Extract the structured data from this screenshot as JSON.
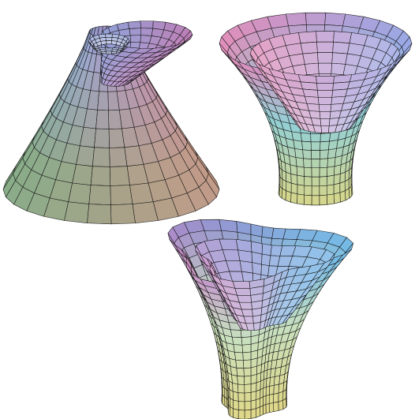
{
  "figure": {
    "background": "#ffffff",
    "mesh_line_color": "#141414",
    "surfaces": [
      {
        "id": "twisted-cone",
        "kind": "ruled-surface-pair",
        "shading": [
          "#d070a8",
          "#8fa0d8",
          "#8f8f8f",
          "#6fb06f",
          "#d89070"
        ]
      },
      {
        "id": "nested-bowls",
        "kind": "two-lobed-vase",
        "shading": [
          "#e58ab8",
          "#9aa6e6",
          "#7cc6e8",
          "#b8e0b8",
          "#d6d68a"
        ]
      },
      {
        "id": "clover-vase",
        "kind": "three-lobed-vase",
        "shading": [
          "#a080c8",
          "#e88fc0",
          "#6fb8e8",
          "#c8e0c0",
          "#e0d888"
        ]
      }
    ]
  }
}
